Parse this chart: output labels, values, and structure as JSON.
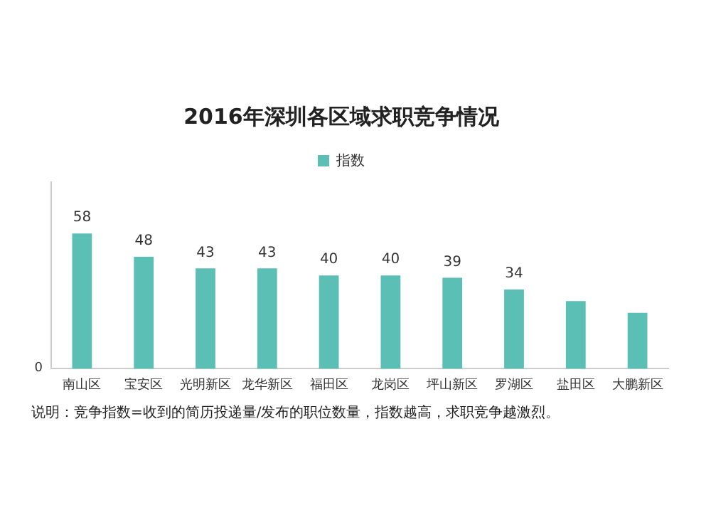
{
  "chart_data": {
    "type": "bar",
    "title": "2016年深圳各区域求职竞争情况",
    "categories": [
      "南山区",
      "宝安区",
      "光明新区",
      "龙华新区",
      "福田区",
      "龙岗区",
      "坪山新区",
      "罗湖区",
      "盐田区",
      "大鹏新区"
    ],
    "series": [
      {
        "name": "指数",
        "color": "#5bbfb5",
        "values": [
          58,
          48,
          43,
          43,
          40,
          40,
          39,
          34,
          29,
          24
        ],
        "value_labels": [
          "58",
          "48",
          "43",
          "43",
          "40",
          "40",
          "39",
          "34",
          null,
          null
        ]
      }
    ],
    "ylim": [
      0,
      80
    ],
    "grid": false,
    "legend": "top",
    "annotations": [
      "0",
      "说明：竞争指数=收到的简历投递量/发布的职位数量，指数越高，求职竞争越激烈。"
    ]
  }
}
